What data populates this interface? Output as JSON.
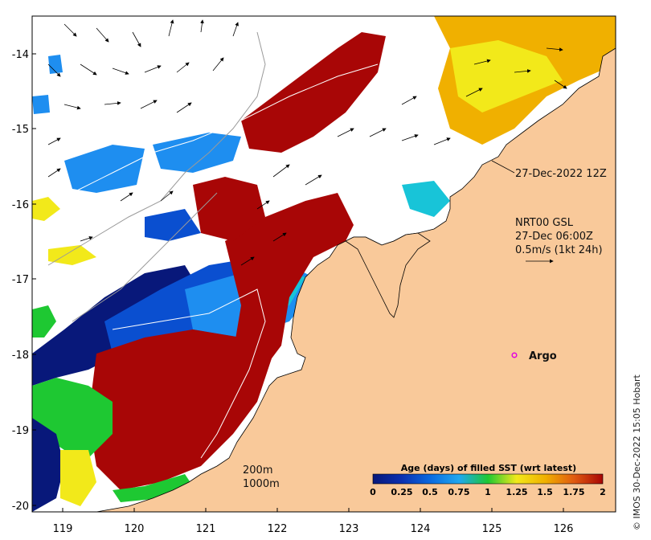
{
  "map": {
    "x_ticks": [
      "119",
      "120",
      "121",
      "122",
      "123",
      "124",
      "125",
      "126"
    ],
    "y_ticks": [
      "-14",
      "-15",
      "-16",
      "-17",
      "-18",
      "-19",
      "-20"
    ],
    "colors": {
      "land": "#f9c99a",
      "ocean_nodata": "#ffffff",
      "age_0": "#08187a",
      "age_025": "#0a4fd0",
      "age_05": "#1e8ef0",
      "age_075": "#18c4d8",
      "age_1": "#1ec832",
      "age_125": "#f2e91a",
      "age_15": "#f0b000",
      "age_175": "#e05a10",
      "age_2": "#a80606",
      "argo": "#e000e0"
    }
  },
  "annotations": {
    "timestamp_label": "27-Dec-2022 12Z",
    "current_title": "NRT00 GSL",
    "current_time": "27-Dec 06:00Z",
    "current_scale": "0.5m/s (1kt 24h)",
    "argo_label": "Argo"
  },
  "isobaths": {
    "label_200": "200m",
    "label_1000": "1000m"
  },
  "colorbar": {
    "title": "Age (days) of filled SST (wrt latest)",
    "ticks": [
      "0",
      "0.25",
      "0.5",
      "0.75",
      "1",
      "1.25",
      "1.5",
      "1.75",
      "2"
    ]
  },
  "credit": "© IMOS 30-Dec-2022 15:05 Hobart"
}
